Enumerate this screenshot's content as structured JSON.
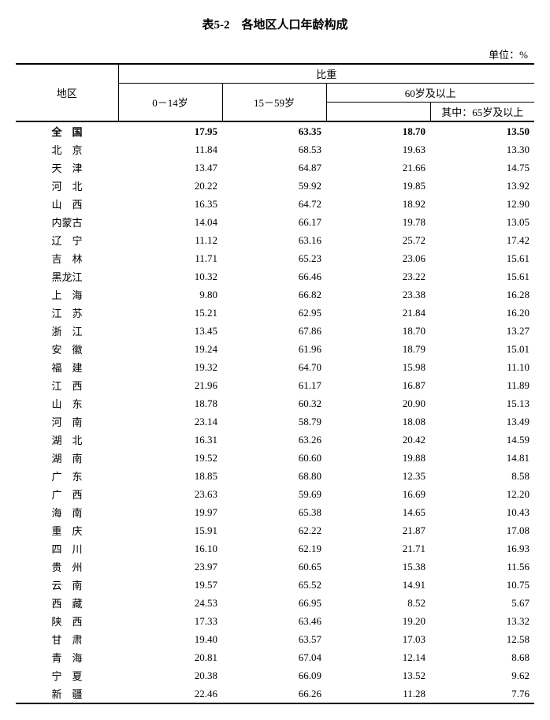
{
  "title": "表5-2　各地区人口年龄构成",
  "unit": "单位：%",
  "headers": {
    "region": "地区",
    "group": "比重",
    "c1": "0－14岁",
    "c2": "15－59岁",
    "c3": "60岁及以上",
    "c4": "其中：65岁及以上"
  },
  "rows": [
    {
      "region": "全　国",
      "c1": "17.95",
      "c2": "63.35",
      "c3": "18.70",
      "c4": "13.50",
      "bold": true,
      "tight": true
    },
    {
      "region": "北　京",
      "c1": "11.84",
      "c2": "68.53",
      "c3": "19.63",
      "c4": "13.30",
      "tight": true
    },
    {
      "region": "天　津",
      "c1": "13.47",
      "c2": "64.87",
      "c3": "21.66",
      "c4": "14.75",
      "tight": true
    },
    {
      "region": "河　北",
      "c1": "20.22",
      "c2": "59.92",
      "c3": "19.85",
      "c4": "13.92",
      "tight": true
    },
    {
      "region": "山　西",
      "c1": "16.35",
      "c2": "64.72",
      "c3": "18.92",
      "c4": "12.90",
      "tight": true
    },
    {
      "region": "内蒙古",
      "c1": "14.04",
      "c2": "66.17",
      "c3": "19.78",
      "c4": "13.05",
      "tight": true
    },
    {
      "region": "辽　宁",
      "c1": "11.12",
      "c2": "63.16",
      "c3": "25.72",
      "c4": "17.42",
      "tight": true
    },
    {
      "region": "吉　林",
      "c1": "11.71",
      "c2": "65.23",
      "c3": "23.06",
      "c4": "15.61",
      "tight": true
    },
    {
      "region": "黑龙江",
      "c1": "10.32",
      "c2": "66.46",
      "c3": "23.22",
      "c4": "15.61",
      "tight": true
    },
    {
      "region": "上　海",
      "c1": "9.80",
      "c2": "66.82",
      "c3": "23.38",
      "c4": "16.28",
      "tight": true
    },
    {
      "region": "江　苏",
      "c1": "15.21",
      "c2": "62.95",
      "c3": "21.84",
      "c4": "16.20",
      "tight": true
    },
    {
      "region": "浙　江",
      "c1": "13.45",
      "c2": "67.86",
      "c3": "18.70",
      "c4": "13.27",
      "tight": true
    },
    {
      "region": "安　徽",
      "c1": "19.24",
      "c2": "61.96",
      "c3": "18.79",
      "c4": "15.01",
      "tight": true
    },
    {
      "region": "福　建",
      "c1": "19.32",
      "c2": "64.70",
      "c3": "15.98",
      "c4": "11.10",
      "tight": true
    },
    {
      "region": "江　西",
      "c1": "21.96",
      "c2": "61.17",
      "c3": "16.87",
      "c4": "11.89",
      "tight": true
    },
    {
      "region": "山　东",
      "c1": "18.78",
      "c2": "60.32",
      "c3": "20.90",
      "c4": "15.13",
      "tight": true
    },
    {
      "region": "河　南",
      "c1": "23.14",
      "c2": "58.79",
      "c3": "18.08",
      "c4": "13.49",
      "tight": true
    },
    {
      "region": "湖　北",
      "c1": "16.31",
      "c2": "63.26",
      "c3": "20.42",
      "c4": "14.59",
      "tight": true
    },
    {
      "region": "湖　南",
      "c1": "19.52",
      "c2": "60.60",
      "c3": "19.88",
      "c4": "14.81",
      "tight": true
    },
    {
      "region": "广　东",
      "c1": "18.85",
      "c2": "68.80",
      "c3": "12.35",
      "c4": "8.58",
      "tight": true
    },
    {
      "region": "广　西",
      "c1": "23.63",
      "c2": "59.69",
      "c3": "16.69",
      "c4": "12.20",
      "tight": true
    },
    {
      "region": "海　南",
      "c1": "19.97",
      "c2": "65.38",
      "c3": "14.65",
      "c4": "10.43",
      "tight": true
    },
    {
      "region": "重　庆",
      "c1": "15.91",
      "c2": "62.22",
      "c3": "21.87",
      "c4": "17.08",
      "tight": true
    },
    {
      "region": "四　川",
      "c1": "16.10",
      "c2": "62.19",
      "c3": "21.71",
      "c4": "16.93",
      "tight": true
    },
    {
      "region": "贵　州",
      "c1": "23.97",
      "c2": "60.65",
      "c3": "15.38",
      "c4": "11.56",
      "tight": true
    },
    {
      "region": "云　南",
      "c1": "19.57",
      "c2": "65.52",
      "c3": "14.91",
      "c4": "10.75",
      "tight": true
    },
    {
      "region": "西　藏",
      "c1": "24.53",
      "c2": "66.95",
      "c3": "8.52",
      "c4": "5.67",
      "tight": true
    },
    {
      "region": "陕　西",
      "c1": "17.33",
      "c2": "63.46",
      "c3": "19.20",
      "c4": "13.32",
      "tight": true
    },
    {
      "region": "甘　肃",
      "c1": "19.40",
      "c2": "63.57",
      "c3": "17.03",
      "c4": "12.58",
      "tight": true
    },
    {
      "region": "青　海",
      "c1": "20.81",
      "c2": "67.04",
      "c3": "12.14",
      "c4": "8.68",
      "tight": true
    },
    {
      "region": "宁　夏",
      "c1": "20.38",
      "c2": "66.09",
      "c3": "13.52",
      "c4": "9.62",
      "tight": true
    },
    {
      "region": "新　疆",
      "c1": "22.46",
      "c2": "66.26",
      "c3": "11.28",
      "c4": "7.76",
      "tight": true
    }
  ]
}
